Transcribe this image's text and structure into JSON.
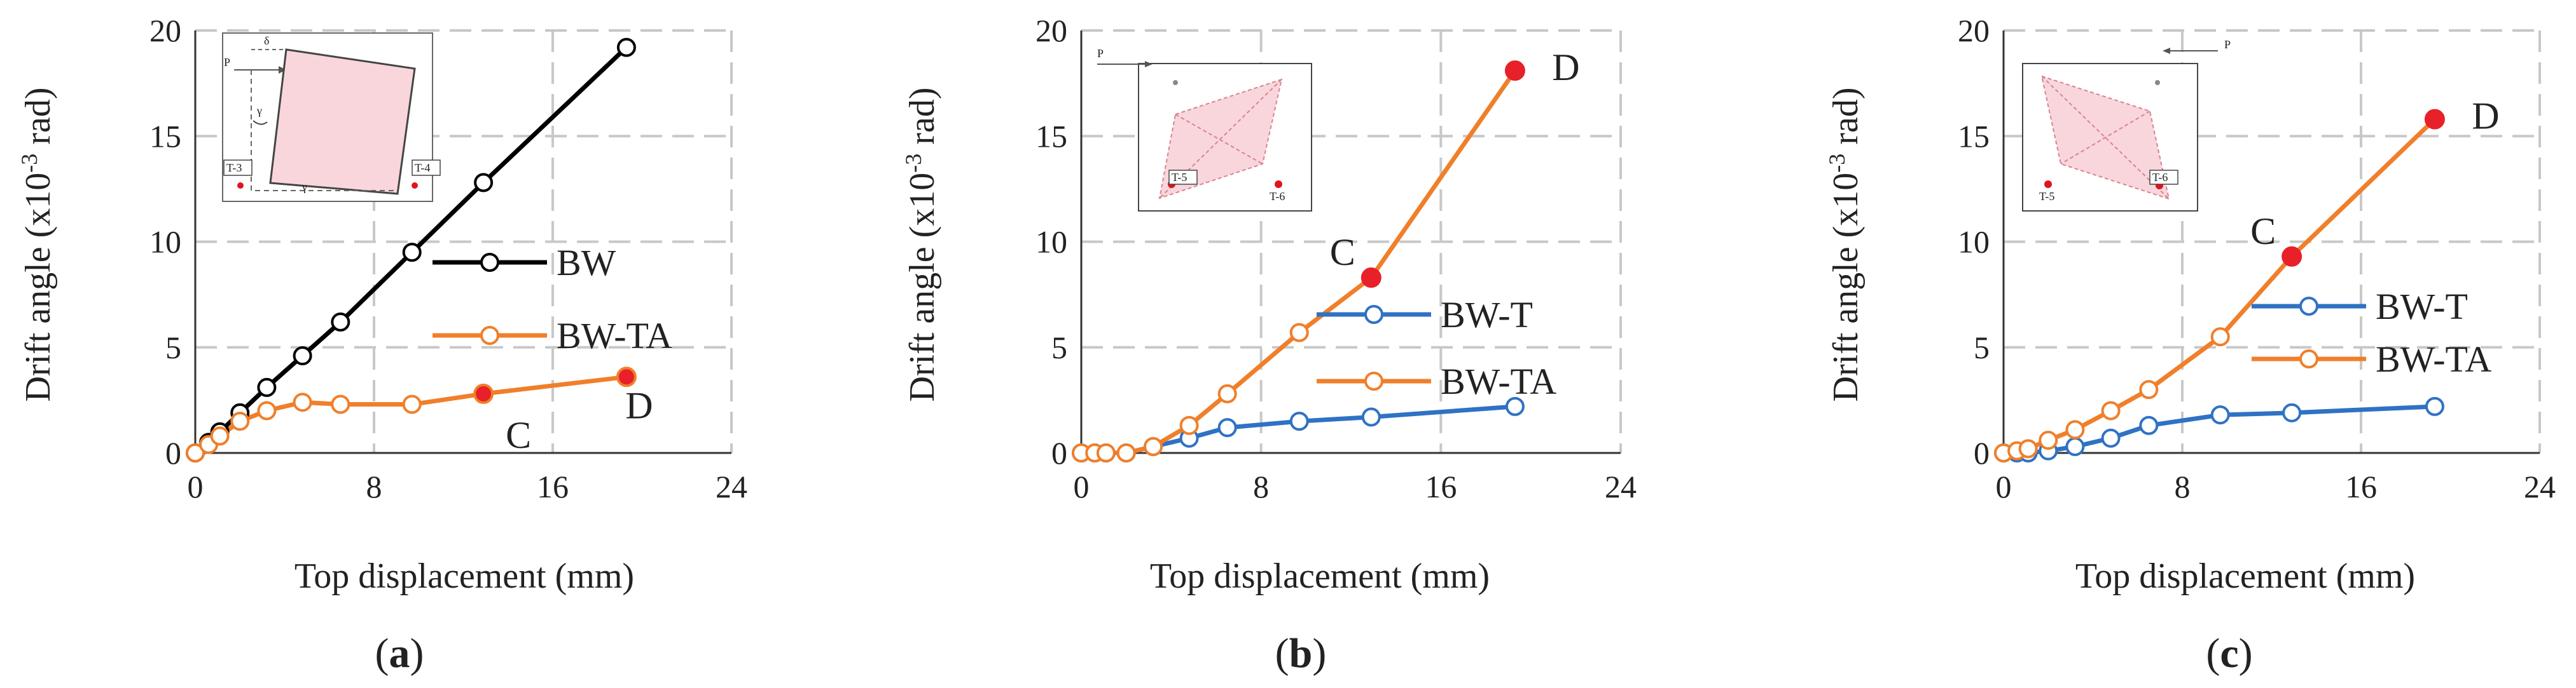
{
  "figure": {
    "panels": [
      {
        "id": "a",
        "label_open": "(",
        "label_letter": "a",
        "label_close": ")",
        "inset_labels": {
          "load": "P",
          "delta": "δ",
          "gamma_left": "γ",
          "gamma_bottom": "γ",
          "gauge_left": "T-3",
          "gauge_right": "T-4"
        }
      },
      {
        "id": "b",
        "label_open": "(",
        "label_letter": "b",
        "label_close": ")",
        "inset_labels": {
          "load": "P",
          "gauge_left": "T-5",
          "gauge_right": "T-6"
        }
      },
      {
        "id": "c",
        "label_open": "(",
        "label_letter": "c",
        "label_close": ")",
        "inset_labels": {
          "load": "P",
          "gauge_left": "T-5",
          "gauge_right": "T-6"
        }
      }
    ]
  },
  "chart_data": [
    {
      "type": "line",
      "xlabel": "Top displacement (mm)",
      "ylabel_main": "Drift angle (x10",
      "ylabel_sup": "-3",
      "ylabel_tail": " rad)",
      "xlim": [
        0,
        24
      ],
      "ylim": [
        0,
        20
      ],
      "xticks": [
        0,
        8,
        16,
        24
      ],
      "yticks": [
        0,
        5,
        10,
        15,
        20
      ],
      "grid": true,
      "legend_position": "center-right",
      "series": [
        {
          "name": "BW",
          "color": "#000000",
          "x": [
            0,
            0.6,
            1.1,
            2,
            3.2,
            4.8,
            6.5,
            9.7,
            12.9,
            19.3
          ],
          "y": [
            0,
            0.5,
            1.0,
            1.9,
            3.1,
            4.6,
            6.2,
            9.5,
            12.8,
            19.2
          ]
        },
        {
          "name": "BW-TA",
          "color": "#f07f2a",
          "x": [
            0,
            0.6,
            1.1,
            2,
            3.2,
            4.8,
            6.5,
            9.7,
            12.9,
            19.3
          ],
          "y": [
            0,
            0.4,
            0.8,
            1.5,
            2.0,
            2.4,
            2.3,
            2.3,
            2.8,
            3.6
          ]
        }
      ],
      "annotations": [
        {
          "text": "C",
          "x": 12.9,
          "y": 2.8,
          "series": "BW-TA"
        },
        {
          "text": "D",
          "x": 19.3,
          "y": 3.6,
          "series": "BW-TA"
        }
      ]
    },
    {
      "type": "line",
      "xlabel": "Top displacement (mm)",
      "ylabel_main": "Drift angle (x10",
      "ylabel_sup": "-3",
      "ylabel_tail": " rad)",
      "xlim": [
        0,
        24
      ],
      "ylim": [
        0,
        20
      ],
      "xticks": [
        0,
        8,
        16,
        24
      ],
      "yticks": [
        0,
        5,
        10,
        15,
        20
      ],
      "grid": true,
      "legend_position": "center-right",
      "series": [
        {
          "name": "BW-T",
          "color": "#2f72c4",
          "x": [
            0,
            0.6,
            1.1,
            2,
            3.2,
            4.8,
            6.5,
            9.7,
            12.9,
            19.3
          ],
          "y": [
            0,
            0,
            0,
            0,
            0.3,
            0.7,
            1.2,
            1.5,
            1.7,
            2.2
          ]
        },
        {
          "name": "BW-TA",
          "color": "#f07f2a",
          "x": [
            0,
            0.6,
            1.1,
            2,
            3.2,
            4.8,
            6.5,
            9.7,
            12.9,
            19.3
          ],
          "y": [
            0,
            0,
            0,
            0,
            0.3,
            1.3,
            2.8,
            5.7,
            8.3,
            18.1
          ]
        }
      ],
      "annotations": [
        {
          "text": "C",
          "x": 12.9,
          "y": 8.3,
          "series": "BW-TA"
        },
        {
          "text": "D",
          "x": 19.3,
          "y": 18.1,
          "series": "BW-TA"
        }
      ]
    },
    {
      "type": "line",
      "xlabel": "Top displacement (mm)",
      "ylabel_main": "Drift angle (x10",
      "ylabel_sup": "-3",
      "ylabel_tail": " rad)",
      "xlim": [
        0,
        24
      ],
      "ylim": [
        0,
        20
      ],
      "xticks": [
        0,
        8,
        16,
        24
      ],
      "yticks": [
        0,
        5,
        10,
        15,
        20
      ],
      "grid": true,
      "legend_position": "center-right",
      "series": [
        {
          "name": "BW-T",
          "color": "#2f72c4",
          "x": [
            0,
            0.6,
            1.1,
            2,
            3.2,
            4.8,
            6.5,
            9.7,
            12.9,
            19.3
          ],
          "y": [
            0,
            0,
            0,
            0.1,
            0.3,
            0.7,
            1.3,
            1.8,
            1.9,
            2.2
          ]
        },
        {
          "name": "BW-TA",
          "color": "#f07f2a",
          "x": [
            0,
            0.6,
            1.1,
            2,
            3.2,
            4.8,
            6.5,
            9.7,
            12.9,
            19.3
          ],
          "y": [
            0,
            0.1,
            0.2,
            0.6,
            1.1,
            2.0,
            3.0,
            5.5,
            9.3,
            15.8
          ]
        }
      ],
      "annotations": [
        {
          "text": "C",
          "x": 12.9,
          "y": 9.3,
          "series": "BW-TA"
        },
        {
          "text": "D",
          "x": 19.3,
          "y": 15.8,
          "series": "BW-TA"
        }
      ]
    }
  ]
}
